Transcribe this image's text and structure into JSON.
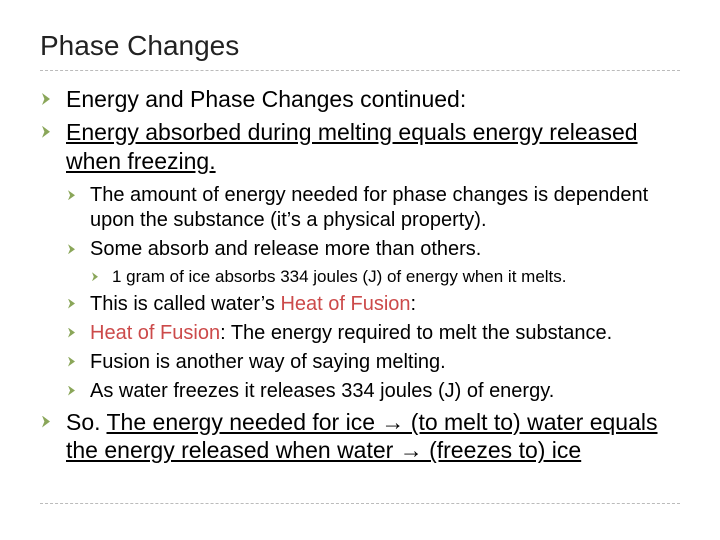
{
  "styles": {
    "title_color": "#222222",
    "bullet_color": "#8aa659",
    "accent_color": "#cc4a4a",
    "rule_color": "#bbbbbb",
    "background_color": "#ffffff",
    "body_font": "Arial",
    "title_fontsize": 28,
    "l1_fontsize": 23,
    "l2_fontsize": 20,
    "l3_fontsize": 17
  },
  "title": "Phase Changes",
  "l1": {
    "item0": "Energy and Phase Changes continued:",
    "item1": "Energy absorbed during melting equals energy released when freezing.",
    "item2_pre": "So. ",
    "item2_underline": "The energy needed for ice → (to melt to) water equals the energy released when water → (freezes to) ice"
  },
  "l2": {
    "item0": "The amount of energy needed for phase changes is dependent upon the substance (it’s a physical property).",
    "item1": "Some absorb and release more than others.",
    "item2_pre": "This is called water’s ",
    "item2_accent": "Heat of Fusion",
    "item2_post": ":",
    "item3_accent": "Heat of Fusion",
    "item3_post": ": The energy required to melt the substance.",
    "item4": "Fusion is another way of saying melting.",
    "item5": "As water freezes it releases 334 joules (J) of energy."
  },
  "l3": {
    "item0": "1 gram of ice absorbs 334 joules (J) of energy when it melts."
  }
}
